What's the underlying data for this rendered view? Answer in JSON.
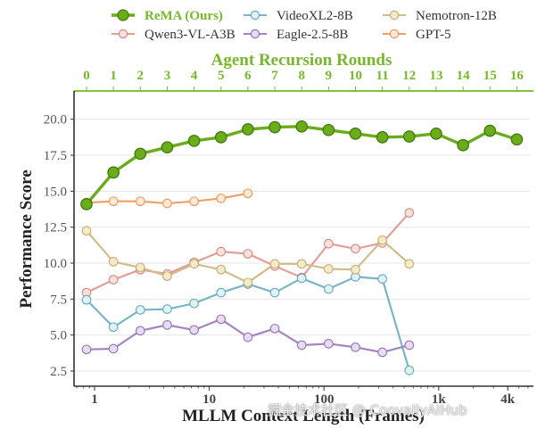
{
  "chart_data": {
    "type": "line",
    "title": "",
    "xlabel": "MLLM Context Length (Frames)",
    "ylabel": "Performance Score",
    "x2label": "Agent Recursion Rounds",
    "x_scale": "log",
    "x_ticks": [
      {
        "value": 1,
        "label": "1"
      },
      {
        "value": 10,
        "label": "10"
      },
      {
        "value": 100,
        "label": "100"
      },
      {
        "value": 1000,
        "label": "1k"
      },
      {
        "value": 4000,
        "label": "4k"
      }
    ],
    "x2_ticks": [
      "0",
      "1",
      "2",
      "3",
      "4",
      "5",
      "6",
      "7",
      "8",
      "9",
      "10",
      "11",
      "12",
      "13",
      "14",
      "15",
      "16"
    ],
    "y_ticks": [
      "2.5",
      "5.0",
      "7.5",
      "10.0",
      "12.5",
      "15.0",
      "17.5",
      "20.0"
    ],
    "y_tick_values": [
      2.5,
      5.0,
      7.5,
      10.0,
      12.5,
      15.0,
      17.5,
      20.0
    ],
    "ylim": [
      1.6,
      22.2
    ],
    "x2lim": [
      -0.3,
      16.5
    ],
    "grid": true,
    "legend_position": "top",
    "x": [
      0,
      1,
      2,
      3,
      4,
      5,
      6,
      7,
      8,
      9,
      10,
      11,
      12,
      13,
      14,
      15,
      16
    ],
    "series": [
      {
        "name": "ReMA (Ours)",
        "color": "#6aac1a",
        "edge": "#3f7a0a",
        "fill": "#6aac1a",
        "highlight": true,
        "values": [
          14.1,
          16.3,
          17.6,
          18.05,
          18.5,
          18.75,
          19.3,
          19.45,
          19.5,
          19.25,
          19.0,
          18.75,
          18.8,
          19.0,
          18.2,
          19.2,
          18.6
        ]
      },
      {
        "name": "Qwen3-VL-A3B",
        "color": "#e0a098",
        "edge": "#d48a84",
        "fill": "#fbe0dc",
        "values": [
          7.95,
          8.85,
          9.55,
          9.25,
          10.05,
          10.8,
          10.65,
          9.8,
          9.0,
          11.35,
          11.0,
          11.4,
          13.5
        ]
      },
      {
        "name": "VideoXL2-8B",
        "color": "#79b6c6",
        "edge": "#6aa9bb",
        "fill": "#dff2f5",
        "values": [
          7.45,
          5.55,
          6.75,
          6.8,
          7.2,
          7.95,
          8.55,
          7.95,
          8.95,
          8.2,
          9.05,
          8.9,
          2.55
        ]
      },
      {
        "name": "Eagle-2.5-8B",
        "color": "#a584c4",
        "edge": "#9575b8",
        "fill": "#e8dcf3",
        "values": [
          4.0,
          4.05,
          5.3,
          5.7,
          5.35,
          6.1,
          4.85,
          5.45,
          4.3,
          4.4,
          4.15,
          3.8,
          4.3
        ]
      },
      {
        "name": "Nemotron-12B",
        "color": "#d2bc8a",
        "edge": "#c9ae72",
        "fill": "#f4ebcc",
        "values": [
          12.25,
          10.1,
          9.7,
          9.1,
          9.95,
          9.55,
          8.65,
          9.95,
          9.95,
          9.6,
          9.55,
          11.6,
          9.95
        ]
      },
      {
        "name": "GPT-5",
        "color": "#f0a060",
        "edge": "#ec9a5a",
        "fill": "#fde9d6",
        "values": [
          14.2,
          14.3,
          14.3,
          14.15,
          14.3,
          14.5,
          14.85
        ]
      }
    ],
    "legend_order": [
      "ReMA (Ours)",
      "VideoXL2-8B",
      "Nemotron-12B",
      "Qwen3-VL-A3B",
      "Eagle-2.5-8B",
      "GPT-5"
    ]
  },
  "watermark": "掘金技术社区 @ CoovallyAIHub"
}
